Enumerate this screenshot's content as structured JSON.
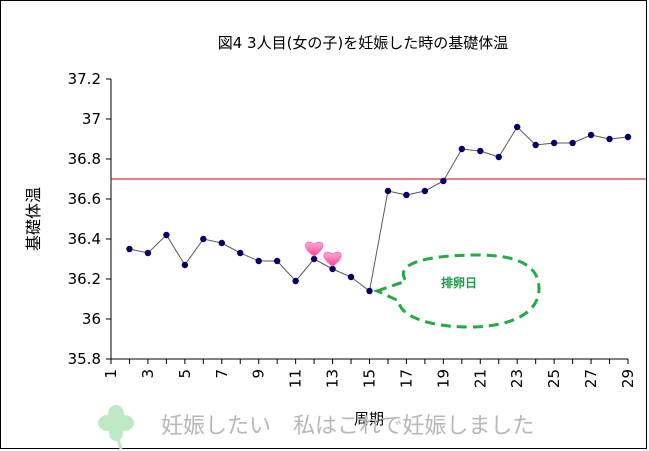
{
  "chart_data": {
    "type": "line",
    "title": "図4 3人目(女の子)を妊娠した時の基礎体温",
    "ylabel": "基礎体温",
    "xlabel": "周期",
    "ylim": [
      35.8,
      37.2
    ],
    "yticks": [
      35.8,
      36,
      36.2,
      36.4,
      36.6,
      36.8,
      37,
      37.2
    ],
    "ytick_labels": [
      "35.8",
      "36",
      "36.2",
      "36.4",
      "36.6",
      "36.8",
      "37",
      "37.2"
    ],
    "xlim": [
      1,
      29
    ],
    "xticks": [
      1,
      3,
      5,
      7,
      9,
      11,
      13,
      15,
      17,
      19,
      21,
      23,
      25,
      27,
      29
    ],
    "xtick_labels": [
      "1",
      "3",
      "5",
      "7",
      "9",
      "11",
      "13",
      "15",
      "17",
      "19",
      "21",
      "23",
      "25",
      "27",
      "29"
    ],
    "grid": false,
    "reference_line": {
      "y": 36.7,
      "color": "#cc0000"
    },
    "series": [
      {
        "color": "#000066",
        "x": [
          2,
          3,
          4,
          5,
          6,
          7,
          8,
          9,
          10,
          11,
          12,
          13,
          14,
          15,
          16,
          17,
          18,
          19,
          20,
          21,
          22,
          23,
          24,
          25,
          26,
          27,
          28,
          29
        ],
        "y": [
          36.35,
          36.33,
          36.42,
          36.27,
          36.4,
          36.38,
          36.33,
          36.29,
          36.29,
          36.19,
          36.3,
          36.25,
          36.21,
          36.14,
          36.64,
          36.62,
          36.64,
          36.69,
          36.85,
          36.84,
          36.81,
          36.96,
          36.87,
          36.88,
          36.88,
          36.92,
          36.9,
          36.91
        ]
      }
    ],
    "annotations": [
      {
        "text": "排卵日",
        "x": 15,
        "y": 36.14,
        "color": "#1f9a43"
      }
    ],
    "markers": [
      {
        "type": "heart",
        "x": 12,
        "y": 36.3,
        "color": "#ff66aa"
      },
      {
        "type": "heart",
        "x": 13,
        "y": 36.25,
        "color": "#ff66aa"
      }
    ]
  },
  "watermark": {
    "text": "妊娠したい　私はこれで妊娠しました",
    "icon": "clover-icon"
  }
}
